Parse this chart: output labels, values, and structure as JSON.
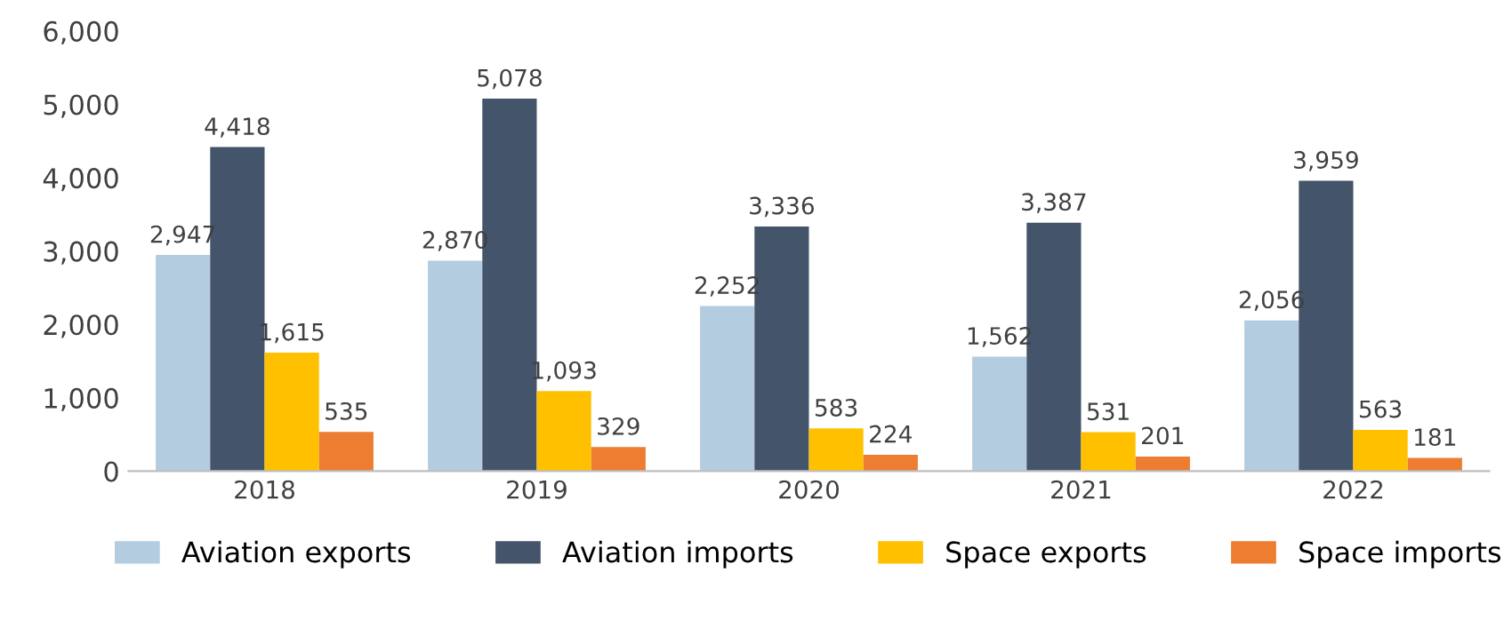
{
  "chart_data": {
    "type": "bar",
    "categories": [
      "2018",
      "2019",
      "2020",
      "2021",
      "2022"
    ],
    "series": [
      {
        "name": "Aviation exports",
        "color": "#b4cce0",
        "values": [
          2947,
          2870,
          2252,
          1562,
          2056
        ],
        "value_labels": [
          "2,947",
          "2,870",
          "2,252",
          "1,562",
          "2,056"
        ]
      },
      {
        "name": "Aviation imports",
        "color": "#44546a",
        "values": [
          4418,
          5078,
          3336,
          3387,
          3959
        ],
        "value_labels": [
          "4,418",
          "5,078",
          "3,336",
          "3,387",
          "3,959"
        ]
      },
      {
        "name": "Space exports",
        "color": "#ffc000",
        "values": [
          1615,
          1093,
          583,
          531,
          563
        ],
        "value_labels": [
          "1,615",
          "1,093",
          "583",
          "531",
          "563"
        ]
      },
      {
        "name": "Space imports",
        "color": "#ed7d31",
        "values": [
          535,
          329,
          224,
          201,
          181
        ],
        "value_labels": [
          "535",
          "329",
          "224",
          "201",
          "181"
        ]
      }
    ],
    "ylim": [
      0,
      6000
    ],
    "yticks": [
      {
        "value": 0,
        "label": "0"
      },
      {
        "value": 1000,
        "label": "1,000"
      },
      {
        "value": 2000,
        "label": "2,000"
      },
      {
        "value": 3000,
        "label": "3,000"
      },
      {
        "value": 4000,
        "label": "4,000"
      },
      {
        "value": 5000,
        "label": "5,000"
      },
      {
        "value": 6000,
        "label": "6,000"
      }
    ],
    "grid": false,
    "legend": "bottom"
  }
}
